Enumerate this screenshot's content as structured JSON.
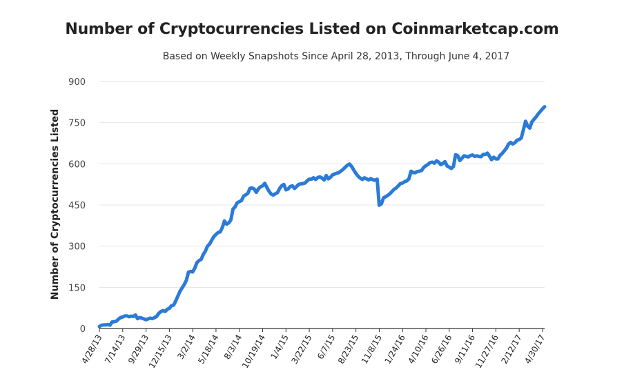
{
  "chart_data": {
    "type": "line",
    "title": "Number of Cryptocurrencies Listed on Coinmarketcap.com",
    "subtitle": "Based on Weekly Snapshots Since April 28, 2013, Through June 4, 2017",
    "xlabel": "",
    "ylabel": "Number of Cryptocurrencies Listed",
    "ylim": [
      0,
      900
    ],
    "yticks": [
      "0",
      "150",
      "300",
      "450",
      "600",
      "750",
      "900"
    ],
    "xtick_labels": [
      "4/28/13",
      "7/14/13",
      "9/29/13",
      "12/15/13",
      "3/2/14",
      "5/18/14",
      "8/3/14",
      "10/19/14",
      "1/4/15",
      "3/22/15",
      "6/7/15",
      "8/23/15",
      "11/8/15",
      "1/24/16",
      "4/10/16",
      "6/26/16",
      "9/11/16",
      "11/27/16",
      "2/12/17",
      "4/30/17"
    ],
    "grid": true,
    "legend": "none",
    "line_color": "#2b7bd6",
    "series": [
      {
        "values": [
          7,
          12,
          13,
          13,
          14,
          12,
          24,
          25,
          27,
          34,
          40,
          42,
          46,
          46,
          43,
          45,
          44,
          49,
          36,
          40,
          38,
          35,
          32,
          35,
          38,
          36,
          40,
          44,
          55,
          62,
          65,
          62,
          70,
          74,
          83,
          85,
          100,
          118,
          135,
          148,
          160,
          175,
          205,
          208,
          206,
          220,
          240,
          248,
          252,
          270,
          282,
          300,
          308,
          322,
          335,
          343,
          350,
          352,
          368,
          392,
          380,
          385,
          395,
          435,
          443,
          458,
          462,
          466,
          482,
          487,
          492,
          510,
          512,
          508,
          496,
          509,
          516,
          520,
          529,
          514,
          500,
          490,
          486,
          491,
          495,
          510,
          520,
          525,
          505,
          508,
          517,
          520,
          510,
          517,
          525,
          527,
          528,
          530,
          538,
          544,
          544,
          549,
          543,
          550,
          552,
          548,
          541,
          557,
          545,
          551,
          560,
          563,
          566,
          568,
          574,
          580,
          588,
          595,
          599,
          590,
          577,
          565,
          555,
          548,
          543,
          549,
          545,
          541,
          546,
          542,
          540,
          544,
          449,
          454,
          476,
          480,
          485,
          491,
          499,
          507,
          512,
          520,
          528,
          530,
          535,
          538,
          545,
          573,
          568,
          568,
          572,
          573,
          576,
          587,
          593,
          598,
          604,
          606,
          602,
          611,
          606,
          597,
          601,
          608,
          592,
          588,
          583,
          590,
          633,
          630,
          612,
          620,
          629,
          627,
          625,
          630,
          632,
          627,
          629,
          627,
          626,
          634,
          634,
          639,
          628,
          615,
          624,
          618,
          618,
          631,
          638,
          647,
          657,
          672,
          678,
          672,
          677,
          686,
          688,
          694,
          724,
          755,
          737,
          730,
          753,
          762,
          771,
          782,
          791,
          800,
          808
        ]
      }
    ]
  }
}
